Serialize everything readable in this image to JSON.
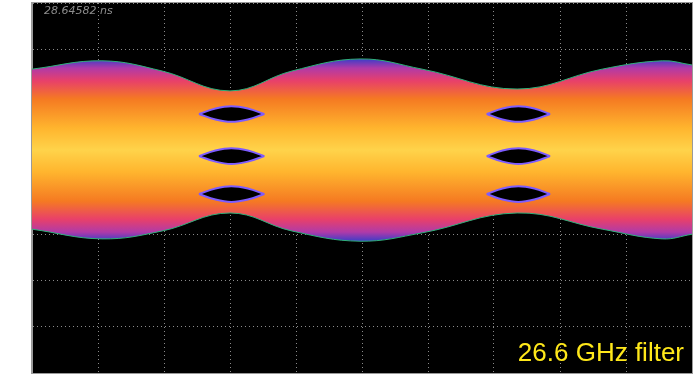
{
  "chart_data": {
    "type": "eye",
    "annotations": [
      "28.64582 ns",
      "26.6 GHz filter"
    ],
    "xlim": [
      0,
      10
    ],
    "ylim": [
      0,
      8
    ],
    "xticks": [
      0,
      1,
      2,
      3,
      4,
      5,
      6,
      7,
      8,
      9,
      10
    ],
    "yticks": [
      0,
      1,
      2,
      3,
      4,
      5,
      6,
      7,
      8
    ],
    "grid": true,
    "tick_labels": false,
    "series": [
      {
        "type": "band",
        "color": "#ffb52e",
        "x": [
          0,
          1.06,
          1.97,
          3.0,
          3.94,
          4.97,
          5.91,
          7.35,
          8.64,
          9.55,
          10
        ],
        "upper": [
          6.57,
          6.75,
          6.53,
          6.1,
          6.53,
          6.79,
          6.57,
          6.14,
          6.57,
          6.75,
          6.66
        ],
        "lower": [
          3.11,
          2.9,
          3.07,
          3.46,
          3.07,
          2.85,
          3.03,
          3.46,
          3.11,
          2.9,
          3.0
        ]
      },
      {
        "type": "eye",
        "color": "#000000",
        "x": [
          2.53,
          2.78,
          3.02,
          3.27,
          3.52
        ],
        "upper": [
          5.6,
          5.72,
          5.77,
          5.72,
          5.6
        ],
        "lower": [
          5.6,
          5.48,
          5.43,
          5.48,
          5.6
        ]
      },
      {
        "type": "eye",
        "color": "#000000",
        "x": [
          2.53,
          2.78,
          3.02,
          3.27,
          3.52
        ],
        "upper": [
          4.69,
          4.81,
          4.86,
          4.81,
          4.69
        ],
        "lower": [
          4.69,
          4.57,
          4.52,
          4.57,
          4.69
        ]
      },
      {
        "type": "eye",
        "color": "#000000",
        "x": [
          2.53,
          2.78,
          3.02,
          3.27,
          3.52
        ],
        "upper": [
          3.87,
          3.99,
          4.04,
          3.99,
          3.87
        ],
        "lower": [
          3.87,
          3.75,
          3.7,
          3.75,
          3.87
        ]
      },
      {
        "type": "eye",
        "color": "#000000",
        "x": [
          6.89,
          7.13,
          7.37,
          7.61,
          7.85
        ],
        "upper": [
          5.6,
          5.72,
          5.77,
          5.72,
          5.6
        ],
        "lower": [
          5.6,
          5.48,
          5.43,
          5.48,
          5.6
        ]
      },
      {
        "type": "eye",
        "color": "#000000",
        "x": [
          6.89,
          7.13,
          7.37,
          7.61,
          7.85
        ],
        "upper": [
          4.69,
          4.81,
          4.86,
          4.81,
          4.69
        ],
        "lower": [
          4.69,
          4.57,
          4.52,
          4.57,
          4.69
        ]
      },
      {
        "type": "eye",
        "color": "#000000",
        "x": [
          6.89,
          7.13,
          7.37,
          7.61,
          7.85
        ],
        "upper": [
          3.87,
          3.99,
          4.04,
          3.99,
          3.87
        ],
        "lower": [
          3.87,
          3.75,
          3.7,
          3.75,
          3.87
        ]
      }
    ]
  }
}
